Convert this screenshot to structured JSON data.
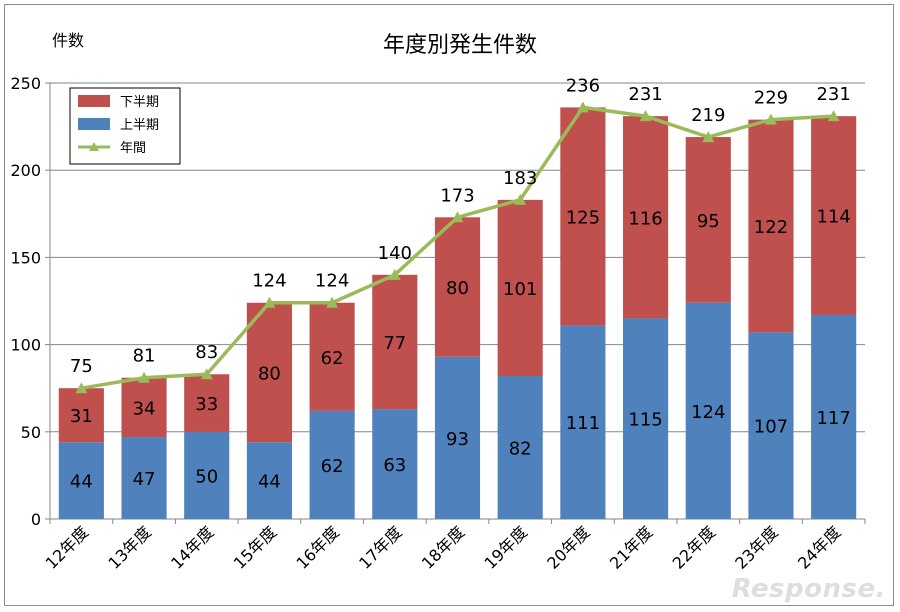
{
  "chart_data": {
    "type": "bar",
    "stacked": true,
    "title": "年度別発生件数",
    "ylabel": "件数",
    "xlabel": "",
    "ylim": [
      0,
      250
    ],
    "yticks": [
      0,
      50,
      100,
      150,
      200,
      250
    ],
    "grid": true,
    "legend_position": "top-left",
    "categories": [
      "12年度",
      "13年度",
      "14年度",
      "15年度",
      "16年度",
      "17年度",
      "18年度",
      "19年度",
      "20年度",
      "21年度",
      "22年度",
      "23年度",
      "24年度"
    ],
    "series": [
      {
        "name": "上半期",
        "type": "bar",
        "color": "#4f81bd",
        "values": [
          44,
          47,
          50,
          44,
          62,
          63,
          93,
          82,
          111,
          115,
          124,
          107,
          117
        ]
      },
      {
        "name": "下半期",
        "type": "bar",
        "color": "#c0504d",
        "values": [
          31,
          34,
          33,
          80,
          62,
          77,
          80,
          101,
          125,
          116,
          95,
          122,
          114
        ]
      },
      {
        "name": "年間",
        "type": "line",
        "color": "#9bbb59",
        "values": [
          75,
          81,
          83,
          124,
          124,
          140,
          173,
          183,
          236,
          231,
          219,
          229,
          231
        ]
      }
    ],
    "legend_order": [
      "下半期",
      "上半期",
      "年間"
    ]
  },
  "watermark": "Response."
}
